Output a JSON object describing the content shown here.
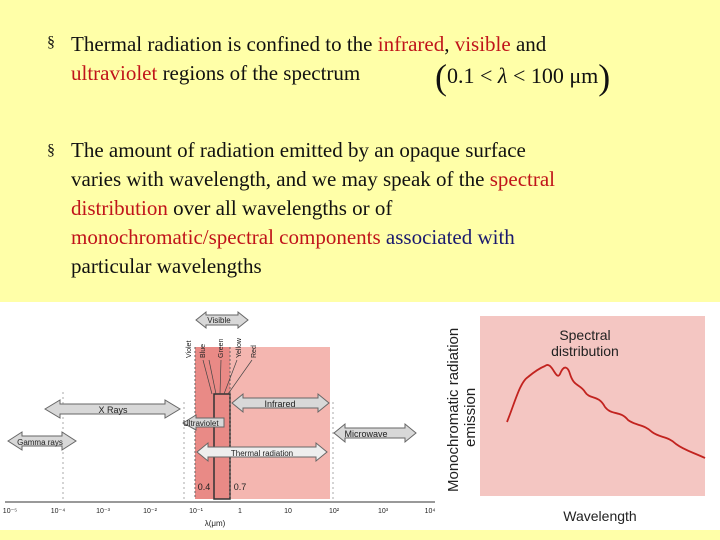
{
  "bullets": [
    {
      "marker": "§",
      "p1": "Thermal radiation is confined to the ",
      "p2": "infrared",
      "p3": ", ",
      "p4": "visible",
      "p5": " and",
      "p6": "ultraviolet",
      "p7": " regions of the spectrum"
    },
    {
      "marker": "§",
      "l1": "The amount of radiation emitted by an opaque surface",
      "l2a": "varies with wavelength, and we may speak of the ",
      "l2b": "spectral",
      "l3a": "distribution",
      "l3b": " over all wavelengths or of",
      "l4a": "monochromatic/spectral components",
      "l4b": " associated with",
      "l5": "particular wavelengths"
    }
  ],
  "formula": {
    "lower": "0.1",
    "symbol": "λ",
    "upper": "100 μm"
  },
  "figure": {
    "visible": "Visible",
    "colors": [
      "Violet",
      "Blue",
      "Green",
      "Yellow",
      "Red"
    ],
    "xrays": "X Rays",
    "gamma": "Gamma rays",
    "ultraviolet": "Ultraviolet",
    "infrared": "Infrared",
    "microwave": "Microwave",
    "thermal": "Thermal radiation",
    "mark_04": "0.4",
    "mark_07": "0.7",
    "ticks": [
      "10⁻⁵",
      "10⁻⁴",
      "10⁻³",
      "10⁻²",
      "10⁻¹",
      "1",
      "10",
      "10²",
      "10³",
      "10⁴"
    ],
    "axis_label": "λ(μm)",
    "y_label_1": "Monochromatic radiation",
    "y_label_2": "emission",
    "spectral_title_1": "Spectral",
    "spectral_title_2": "distribution",
    "wavelength": "Wavelength"
  }
}
